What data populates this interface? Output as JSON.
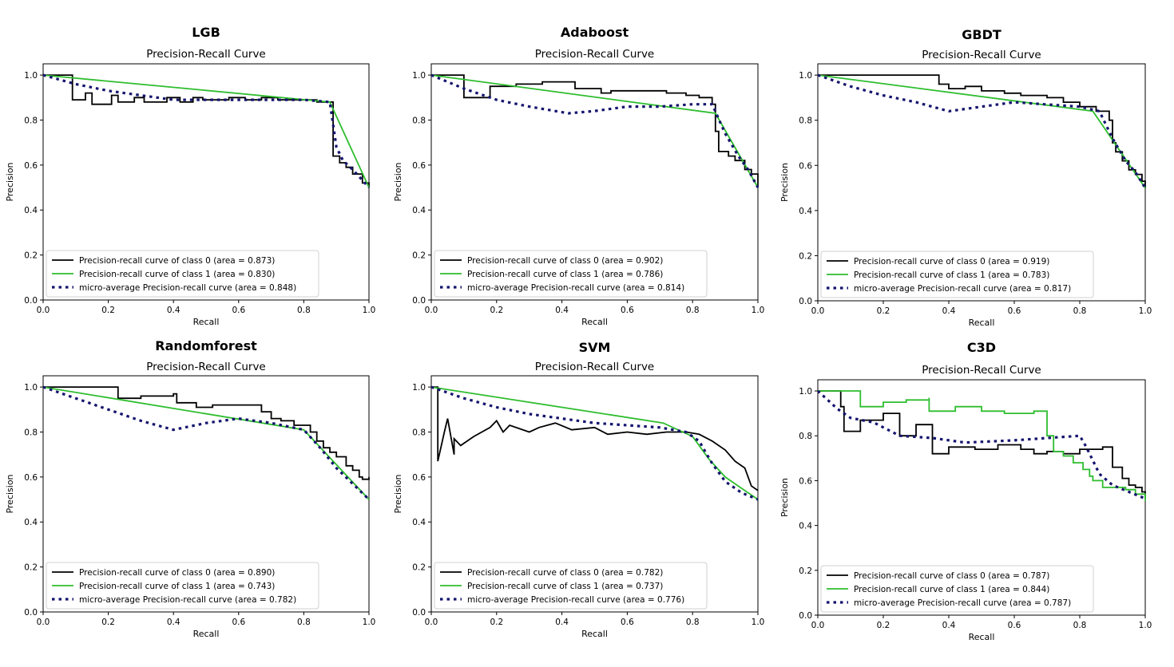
{
  "chart_data": [
    {
      "type": "line",
      "model": "LGB",
      "title": "Precision-Recall Curve",
      "xlabel": "Recall",
      "ylabel": "Precision",
      "xlim": [
        0.0,
        1.0
      ],
      "ylim": [
        0.0,
        1.05
      ],
      "xticks": [
        "0.0",
        "0.2",
        "0.4",
        "0.6",
        "0.8",
        "1.0"
      ],
      "yticks": [
        "0.0",
        "0.2",
        "0.4",
        "0.6",
        "0.8",
        "1.0"
      ],
      "legend_position": "lower-left",
      "grid": false,
      "series": [
        {
          "name": "Precision-recall curve of class 0 (area = 0.873)",
          "color": "#000000",
          "style": "solid",
          "step": true,
          "x": [
            0.0,
            0.09,
            0.09,
            0.13,
            0.15,
            0.21,
            0.23,
            0.28,
            0.31,
            0.38,
            0.42,
            0.46,
            0.49,
            0.57,
            0.62,
            0.67,
            0.72,
            0.78,
            0.84,
            0.88,
            0.89,
            0.89,
            0.91,
            0.93,
            0.95,
            0.97,
            0.98,
            1.0
          ],
          "y": [
            1.0,
            1.0,
            0.89,
            0.92,
            0.87,
            0.91,
            0.88,
            0.9,
            0.88,
            0.9,
            0.88,
            0.9,
            0.89,
            0.9,
            0.89,
            0.9,
            0.89,
            0.89,
            0.88,
            0.88,
            0.75,
            0.64,
            0.61,
            0.59,
            0.56,
            0.56,
            0.52,
            0.5
          ]
        },
        {
          "name": "Precision-recall curve of class 1 (area = 0.830)",
          "color": "#2ebd2e",
          "style": "solid",
          "step": false,
          "x": [
            0.0,
            0.88,
            1.0
          ],
          "y": [
            1.0,
            0.88,
            0.5
          ]
        },
        {
          "name": "micro-average Precision-recall curve (area = 0.848)",
          "color": "#14146e",
          "style": "dotted",
          "step": false,
          "x": [
            0.0,
            0.1,
            0.2,
            0.3,
            0.4,
            0.5,
            0.6,
            0.7,
            0.8,
            0.88,
            0.9,
            0.92,
            0.95,
            1.0
          ],
          "y": [
            1.0,
            0.96,
            0.93,
            0.91,
            0.89,
            0.89,
            0.89,
            0.89,
            0.89,
            0.88,
            0.68,
            0.62,
            0.58,
            0.5
          ]
        }
      ]
    },
    {
      "type": "line",
      "model": "Adaboost",
      "title": "Precision-Recall Curve",
      "xlabel": "Recall",
      "ylabel": "Precision",
      "xlim": [
        0.0,
        1.0
      ],
      "ylim": [
        0.0,
        1.05
      ],
      "xticks": [
        "0.0",
        "0.2",
        "0.4",
        "0.6",
        "0.8",
        "1.0"
      ],
      "yticks": [
        "0.0",
        "0.2",
        "0.4",
        "0.6",
        "0.8",
        "1.0"
      ],
      "legend_position": "lower-left",
      "grid": false,
      "series": [
        {
          "name": "Precision-recall curve of class 0 (area = 0.902)",
          "color": "#000000",
          "style": "solid",
          "step": true,
          "x": [
            0.0,
            0.1,
            0.1,
            0.18,
            0.26,
            0.34,
            0.42,
            0.44,
            0.52,
            0.55,
            0.62,
            0.72,
            0.78,
            0.82,
            0.86,
            0.87,
            0.88,
            0.91,
            0.93,
            0.96,
            0.98,
            1.0
          ],
          "y": [
            1.0,
            1.0,
            0.9,
            0.95,
            0.96,
            0.97,
            0.97,
            0.94,
            0.92,
            0.93,
            0.93,
            0.92,
            0.91,
            0.9,
            0.87,
            0.75,
            0.66,
            0.64,
            0.62,
            0.58,
            0.56,
            0.5
          ]
        },
        {
          "name": "Precision-recall curve of class 1 (area = 0.786)",
          "color": "#2ebd2e",
          "style": "solid",
          "step": false,
          "x": [
            0.0,
            0.87,
            1.0
          ],
          "y": [
            1.0,
            0.83,
            0.5
          ]
        },
        {
          "name": "micro-average Precision-recall curve (area = 0.814)",
          "color": "#14146e",
          "style": "dotted",
          "step": false,
          "x": [
            0.0,
            0.1,
            0.2,
            0.3,
            0.42,
            0.5,
            0.6,
            0.7,
            0.8,
            0.86,
            0.9,
            0.94,
            0.97,
            1.0
          ],
          "y": [
            1.0,
            0.94,
            0.89,
            0.86,
            0.83,
            0.84,
            0.86,
            0.86,
            0.87,
            0.87,
            0.74,
            0.64,
            0.58,
            0.5
          ]
        }
      ]
    },
    {
      "type": "line",
      "model": "GBDT",
      "title": "Precision-Recall Curve",
      "xlabel": "Recall",
      "ylabel": "Precision",
      "xlim": [
        0.0,
        1.0
      ],
      "ylim": [
        0.0,
        1.05
      ],
      "xticks": [
        "0.0",
        "0.2",
        "0.4",
        "0.6",
        "0.8",
        "1.0"
      ],
      "yticks": [
        "0.0",
        "0.2",
        "0.4",
        "0.6",
        "0.8",
        "1.0"
      ],
      "legend_position": "lower-left",
      "grid": false,
      "series": [
        {
          "name": "Precision-recall curve of class 0 (area = 0.919)",
          "color": "#000000",
          "style": "solid",
          "step": true,
          "x": [
            0.0,
            0.37,
            0.37,
            0.4,
            0.45,
            0.5,
            0.57,
            0.62,
            0.7,
            0.75,
            0.8,
            0.85,
            0.89,
            0.9,
            0.91,
            0.93,
            0.95,
            0.97,
            0.99,
            1.0
          ],
          "y": [
            1.0,
            1.0,
            0.96,
            0.94,
            0.95,
            0.93,
            0.92,
            0.91,
            0.9,
            0.88,
            0.86,
            0.84,
            0.8,
            0.7,
            0.66,
            0.62,
            0.58,
            0.56,
            0.53,
            0.5
          ]
        },
        {
          "name": "Precision-recall curve of class 1 (area = 0.783)",
          "color": "#2ebd2e",
          "style": "solid",
          "step": false,
          "x": [
            0.0,
            0.84,
            1.0
          ],
          "y": [
            1.0,
            0.84,
            0.5
          ]
        },
        {
          "name": "micro-average Precision-recall curve (area = 0.817)",
          "color": "#14146e",
          "style": "dotted",
          "step": false,
          "x": [
            0.0,
            0.1,
            0.2,
            0.3,
            0.4,
            0.5,
            0.6,
            0.7,
            0.8,
            0.86,
            0.9,
            0.94,
            0.97,
            1.0
          ],
          "y": [
            1.0,
            0.95,
            0.91,
            0.88,
            0.84,
            0.86,
            0.88,
            0.87,
            0.86,
            0.84,
            0.72,
            0.62,
            0.57,
            0.5
          ]
        }
      ]
    },
    {
      "type": "line",
      "model": "Randomforest",
      "title": "Precision-Recall Curve",
      "xlabel": "Recall",
      "ylabel": "Precision",
      "xlim": [
        0.0,
        1.0
      ],
      "ylim": [
        0.0,
        1.05
      ],
      "xticks": [
        "0.0",
        "0.2",
        "0.4",
        "0.6",
        "0.8",
        "1.0"
      ],
      "yticks": [
        "0.0",
        "0.2",
        "0.4",
        "0.6",
        "0.8",
        "1.0"
      ],
      "legend_position": "lower-left",
      "grid": false,
      "series": [
        {
          "name": "Precision-recall curve of class 0 (area = 0.890)",
          "color": "#000000",
          "style": "solid",
          "step": true,
          "x": [
            0.0,
            0.23,
            0.23,
            0.3,
            0.4,
            0.41,
            0.47,
            0.52,
            0.6,
            0.67,
            0.7,
            0.73,
            0.77,
            0.8,
            0.82,
            0.84,
            0.86,
            0.88,
            0.9,
            0.93,
            0.95,
            0.97,
            0.98,
            1.0
          ],
          "y": [
            1.0,
            1.0,
            0.95,
            0.96,
            0.97,
            0.93,
            0.91,
            0.92,
            0.92,
            0.89,
            0.86,
            0.85,
            0.83,
            0.83,
            0.8,
            0.76,
            0.73,
            0.71,
            0.69,
            0.65,
            0.63,
            0.6,
            0.59,
            0.6
          ]
        },
        {
          "name": "Precision-recall curve of class 1 (area = 0.743)",
          "color": "#2ebd2e",
          "style": "solid",
          "step": false,
          "x": [
            0.0,
            0.8,
            1.0
          ],
          "y": [
            1.0,
            0.81,
            0.5
          ]
        },
        {
          "name": "micro-average Precision-recall curve (area = 0.782)",
          "color": "#14146e",
          "style": "dotted",
          "step": false,
          "x": [
            0.0,
            0.1,
            0.2,
            0.3,
            0.4,
            0.5,
            0.6,
            0.7,
            0.8,
            0.85,
            0.9,
            0.95,
            1.0
          ],
          "y": [
            1.0,
            0.95,
            0.9,
            0.85,
            0.81,
            0.84,
            0.86,
            0.84,
            0.81,
            0.73,
            0.64,
            0.57,
            0.5
          ]
        }
      ]
    },
    {
      "type": "line",
      "model": "SVM",
      "title": "Precision-Recall Curve",
      "xlabel": "Recall",
      "ylabel": "Precision",
      "xlim": [
        0.0,
        1.0
      ],
      "ylim": [
        0.0,
        1.05
      ],
      "xticks": [
        "0.0",
        "0.2",
        "0.4",
        "0.6",
        "0.8",
        "1.0"
      ],
      "yticks": [
        "0.0",
        "0.2",
        "0.4",
        "0.6",
        "0.8",
        "1.0"
      ],
      "legend_position": "lower-left",
      "grid": false,
      "series": [
        {
          "name": "Precision-recall curve of class 0 (area = 0.782)",
          "color": "#000000",
          "style": "solid",
          "step": false,
          "x": [
            0.0,
            0.02,
            0.02,
            0.04,
            0.05,
            0.07,
            0.07,
            0.09,
            0.13,
            0.18,
            0.2,
            0.22,
            0.24,
            0.3,
            0.33,
            0.38,
            0.43,
            0.5,
            0.54,
            0.6,
            0.66,
            0.72,
            0.78,
            0.82,
            0.86,
            0.9,
            0.93,
            0.96,
            0.98,
            1.0
          ],
          "y": [
            1.0,
            1.0,
            0.67,
            0.8,
            0.86,
            0.7,
            0.77,
            0.74,
            0.78,
            0.82,
            0.85,
            0.8,
            0.83,
            0.8,
            0.82,
            0.84,
            0.81,
            0.82,
            0.79,
            0.8,
            0.79,
            0.8,
            0.8,
            0.79,
            0.76,
            0.72,
            0.67,
            0.64,
            0.56,
            0.54
          ]
        },
        {
          "name": "Precision-recall curve of class 1 (area = 0.737)",
          "color": "#2ebd2e",
          "style": "solid",
          "step": false,
          "x": [
            0.0,
            0.71,
            0.8,
            0.85,
            0.9,
            0.95,
            1.0
          ],
          "y": [
            1.0,
            0.84,
            0.78,
            0.68,
            0.6,
            0.55,
            0.5
          ]
        },
        {
          "name": "micro-average Precision-recall curve (area = 0.776)",
          "color": "#14146e",
          "style": "dotted",
          "step": false,
          "x": [
            0.0,
            0.1,
            0.2,
            0.3,
            0.4,
            0.5,
            0.6,
            0.7,
            0.78,
            0.82,
            0.86,
            0.9,
            0.95,
            1.0
          ],
          "y": [
            1.0,
            0.95,
            0.91,
            0.88,
            0.86,
            0.84,
            0.83,
            0.82,
            0.8,
            0.76,
            0.66,
            0.58,
            0.53,
            0.5
          ]
        }
      ]
    },
    {
      "type": "line",
      "model": "C3D",
      "title": "Precision-Recall Curve",
      "xlabel": "Recall",
      "ylabel": "Precision",
      "xlim": [
        0.0,
        1.0
      ],
      "ylim": [
        0.0,
        1.05
      ],
      "xticks": [
        "0.0",
        "0.2",
        "0.4",
        "0.6",
        "0.8",
        "1.0"
      ],
      "yticks": [
        "0.0",
        "0.2",
        "0.4",
        "0.6",
        "0.8",
        "1.0"
      ],
      "legend_position": "lower-left",
      "grid": false,
      "series": [
        {
          "name": "Precision-recall curve of class 0 (area = 0.787)",
          "color": "#000000",
          "style": "solid",
          "step": true,
          "x": [
            0.0,
            0.05,
            0.07,
            0.08,
            0.13,
            0.2,
            0.25,
            0.3,
            0.35,
            0.4,
            0.48,
            0.55,
            0.62,
            0.66,
            0.7,
            0.75,
            0.8,
            0.87,
            0.9,
            0.93,
            0.95,
            0.97,
            0.99,
            1.0
          ],
          "y": [
            1.0,
            1.0,
            0.93,
            0.82,
            0.87,
            0.9,
            0.8,
            0.85,
            0.72,
            0.75,
            0.74,
            0.76,
            0.74,
            0.72,
            0.73,
            0.72,
            0.74,
            0.75,
            0.66,
            0.61,
            0.58,
            0.57,
            0.55,
            0.52
          ]
        },
        {
          "name": "Precision-recall curve of class 1 (area = 0.844)",
          "color": "#2ebd2e",
          "style": "solid",
          "step": true,
          "x": [
            0.0,
            0.13,
            0.13,
            0.2,
            0.27,
            0.34,
            0.34,
            0.42,
            0.5,
            0.57,
            0.66,
            0.69,
            0.7,
            0.72,
            0.75,
            0.78,
            0.81,
            0.83,
            0.84,
            0.87,
            0.9,
            0.94,
            0.97,
            1.0
          ],
          "y": [
            1.0,
            1.0,
            0.93,
            0.95,
            0.96,
            0.97,
            0.91,
            0.93,
            0.91,
            0.9,
            0.91,
            0.91,
            0.8,
            0.73,
            0.71,
            0.68,
            0.65,
            0.62,
            0.6,
            0.57,
            0.57,
            0.56,
            0.54,
            0.51
          ]
        },
        {
          "name": "micro-average Precision-recall curve (area = 0.787)",
          "color": "#14146e",
          "style": "dotted",
          "step": false,
          "x": [
            0.0,
            0.06,
            0.1,
            0.17,
            0.25,
            0.35,
            0.45,
            0.6,
            0.7,
            0.8,
            0.82,
            0.86,
            0.9,
            0.95,
            1.0
          ],
          "y": [
            1.0,
            0.92,
            0.88,
            0.86,
            0.8,
            0.79,
            0.77,
            0.78,
            0.79,
            0.8,
            0.75,
            0.63,
            0.58,
            0.55,
            0.52
          ]
        }
      ]
    }
  ]
}
